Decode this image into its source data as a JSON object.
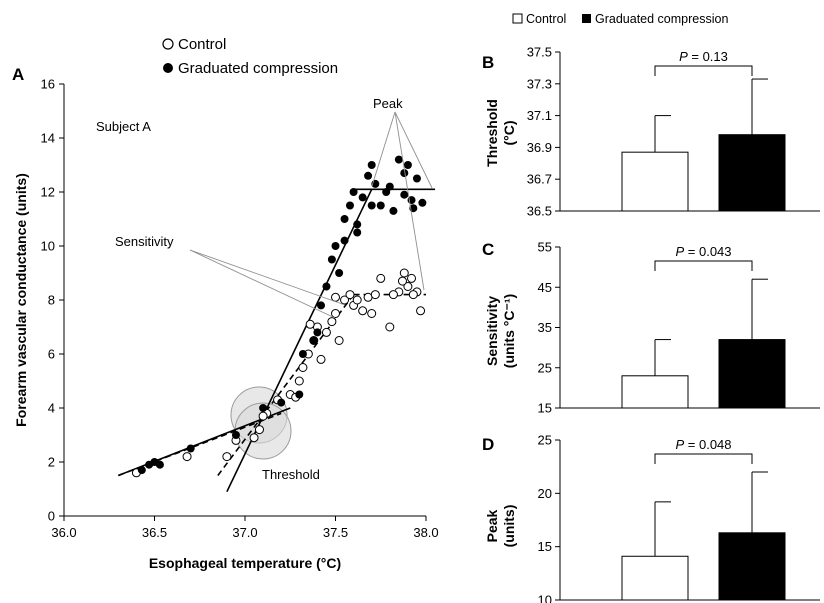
{
  "chart_data": [
    {
      "type": "scatter",
      "panel": "A",
      "subject_label": "Subject A",
      "xlabel": "Esophageal temperature (°C)",
      "ylabel": "Forearm vascular conductance (units)",
      "xlim": [
        36.0,
        38.0
      ],
      "ylim": [
        0,
        16
      ],
      "xticks": [
        "36.0",
        "36.5",
        "37.0",
        "37.5",
        "38.0"
      ],
      "yticks": [
        "0",
        "2",
        "4",
        "6",
        "8",
        "10",
        "12",
        "14",
        "16"
      ],
      "annotations": {
        "peak": "Peak",
        "sensitivity": "Sensitivity",
        "threshold": "Threshold"
      },
      "legend": [
        "Control",
        "Graduated compression"
      ],
      "series": [
        {
          "name": "Control",
          "marker": "open-circle",
          "points": [
            [
              36.4,
              1.6
            ],
            [
              36.68,
              2.2
            ],
            [
              36.95,
              2.8
            ],
            [
              37.05,
              2.9
            ],
            [
              36.9,
              2.2
            ],
            [
              37.08,
              3.2
            ],
            [
              37.12,
              3.8
            ],
            [
              37.18,
              4.3
            ],
            [
              37.25,
              4.5
            ],
            [
              37.3,
              5.0
            ],
            [
              37.32,
              5.5
            ],
            [
              37.35,
              6.0
            ],
            [
              37.38,
              6.5
            ],
            [
              37.4,
              7.0
            ],
            [
              37.42,
              5.8
            ],
            [
              37.45,
              6.8
            ],
            [
              37.48,
              7.2
            ],
            [
              37.5,
              7.5
            ],
            [
              37.52,
              6.5
            ],
            [
              37.55,
              8.0
            ],
            [
              37.58,
              8.2
            ],
            [
              37.6,
              7.8
            ],
            [
              37.62,
              8.0
            ],
            [
              37.65,
              7.6
            ],
            [
              37.68,
              8.1
            ],
            [
              37.7,
              7.5
            ],
            [
              37.72,
              8.2
            ],
            [
              37.75,
              8.8
            ],
            [
              37.8,
              7.0
            ],
            [
              37.85,
              8.3
            ],
            [
              37.88,
              9.0
            ],
            [
              37.9,
              8.5
            ],
            [
              37.92,
              8.8
            ],
            [
              37.95,
              8.3
            ],
            [
              37.97,
              7.6
            ],
            [
              37.93,
              8.2
            ],
            [
              37.82,
              8.2
            ],
            [
              37.87,
              8.7
            ],
            [
              37.36,
              7.1
            ],
            [
              37.28,
              4.4
            ],
            [
              37.1,
              3.7
            ],
            [
              37.5,
              8.1
            ]
          ],
          "fit_lines": [
            [
              [
                36.3,
                1.5
              ],
              [
                37.2,
                3.8
              ]
            ],
            [
              [
                36.85,
                1.5
              ],
              [
                37.6,
                8.2
              ]
            ],
            [
              [
                37.6,
                8.2
              ],
              [
                38.0,
                8.2
              ]
            ]
          ]
        },
        {
          "name": "Graduated compression",
          "marker": "filled-circle",
          "points": [
            [
              36.43,
              1.7
            ],
            [
              36.47,
              1.9
            ],
            [
              36.5,
              2.0
            ],
            [
              36.53,
              1.9
            ],
            [
              36.7,
              2.5
            ],
            [
              36.95,
              3.0
            ],
            [
              37.1,
              4.0
            ],
            [
              37.2,
              4.2
            ],
            [
              37.3,
              4.5
            ],
            [
              37.32,
              6.0
            ],
            [
              37.38,
              6.5
            ],
            [
              37.4,
              6.8
            ],
            [
              37.42,
              7.8
            ],
            [
              37.45,
              8.5
            ],
            [
              37.48,
              9.5
            ],
            [
              37.5,
              10.0
            ],
            [
              37.52,
              9.0
            ],
            [
              37.55,
              10.2
            ],
            [
              37.58,
              11.5
            ],
            [
              37.6,
              12.0
            ],
            [
              37.62,
              10.5
            ],
            [
              37.65,
              11.8
            ],
            [
              37.68,
              12.6
            ],
            [
              37.7,
              13.0
            ],
            [
              37.72,
              12.3
            ],
            [
              37.75,
              11.5
            ],
            [
              37.78,
              12.0
            ],
            [
              37.8,
              12.2
            ],
            [
              37.82,
              11.3
            ],
            [
              37.85,
              13.2
            ],
            [
              37.88,
              12.7
            ],
            [
              37.9,
              13.0
            ],
            [
              37.92,
              11.7
            ],
            [
              37.95,
              12.5
            ],
            [
              37.98,
              11.6
            ],
            [
              37.62,
              10.8
            ],
            [
              37.55,
              11.0
            ],
            [
              37.7,
              11.5
            ],
            [
              37.93,
              11.4
            ],
            [
              37.88,
              11.9
            ]
          ],
          "fit_lines": [
            [
              [
                36.3,
                1.5
              ],
              [
                37.25,
                4.0
              ]
            ],
            [
              [
                36.9,
                0.9
              ],
              [
                37.7,
                12.1
              ]
            ],
            [
              [
                37.6,
                12.1
              ],
              [
                38.05,
                12.1
              ]
            ]
          ]
        }
      ]
    },
    {
      "type": "bar",
      "panel": "B",
      "ylabel_lines": [
        "Threshold",
        "(°C)"
      ],
      "categories": [
        "Control",
        "Graduated compression"
      ],
      "values": [
        36.87,
        36.98
      ],
      "errors": [
        0.23,
        0.35
      ],
      "ylim": [
        36.5,
        37.5
      ],
      "yticks": [
        "36.5",
        "36.7",
        "36.9",
        "37.1",
        "37.3",
        "37.5"
      ],
      "p_value": "0.13"
    },
    {
      "type": "bar",
      "panel": "C",
      "ylabel_lines": [
        "Sensitivity",
        "(units °C⁻¹)"
      ],
      "categories": [
        "Control",
        "Graduated compression"
      ],
      "values": [
        23.0,
        32.0
      ],
      "errors": [
        9.0,
        15.0
      ],
      "ylim": [
        15,
        55
      ],
      "yticks": [
        "15",
        "25",
        "35",
        "45",
        "55"
      ],
      "p_value": "0.043"
    },
    {
      "type": "bar",
      "panel": "D",
      "ylabel_lines": [
        "Peak",
        "(units)"
      ],
      "categories": [
        "Control",
        "Graduated compression"
      ],
      "values": [
        14.1,
        16.3
      ],
      "errors": [
        5.1,
        5.7
      ],
      "ylim": [
        10,
        25
      ],
      "yticks": [
        "10",
        "15",
        "20",
        "25"
      ],
      "p_value": "0.048"
    }
  ],
  "p_prefix": "P",
  "p_equals": " = ",
  "bar_legend": [
    "Control",
    "Graduated compression"
  ],
  "colors": {
    "control_fill": "#ffffff",
    "compression_fill": "#000000",
    "highlight": "#d8d8d8"
  }
}
